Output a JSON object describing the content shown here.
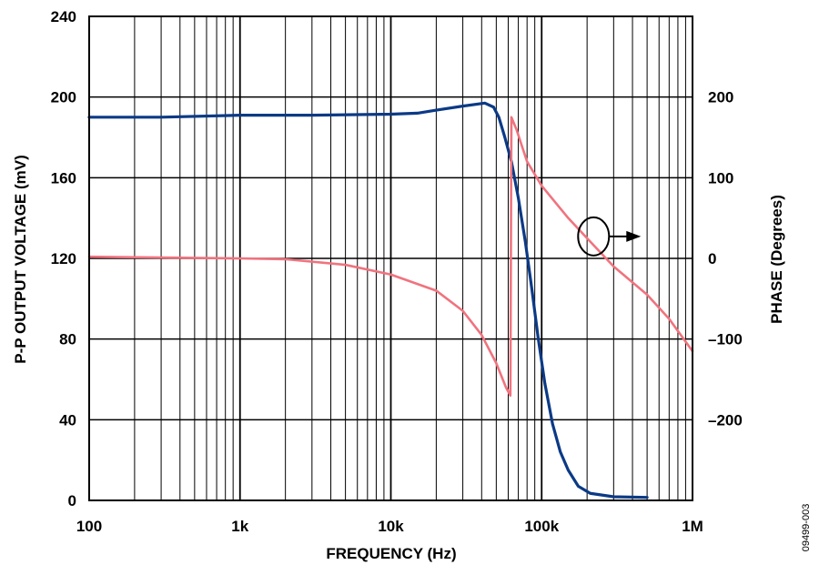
{
  "chart_data": {
    "type": "line",
    "xlabel": "FREQUENCY (Hz)",
    "ylabel": "P-P OUTPUT VOLTAGE (mV)",
    "y2label": "PHASE (Degrees)",
    "x_scale": "log",
    "xlim": [
      100,
      1000000
    ],
    "ylim": [
      0,
      240
    ],
    "y2lim": [
      -300,
      300
    ],
    "grid": true,
    "x_ticks": [
      {
        "value": 100,
        "label": "100"
      },
      {
        "value": 1000,
        "label": "1k"
      },
      {
        "value": 10000,
        "label": "10k"
      },
      {
        "value": 100000,
        "label": "100k"
      },
      {
        "value": 1000000,
        "label": "1M"
      }
    ],
    "y_ticks": [
      {
        "value": 0,
        "label": "0"
      },
      {
        "value": 40,
        "label": "40"
      },
      {
        "value": 80,
        "label": "80"
      },
      {
        "value": 120,
        "label": "120"
      },
      {
        "value": 160,
        "label": "160"
      },
      {
        "value": 200,
        "label": "200"
      },
      {
        "value": 240,
        "label": "240"
      }
    ],
    "y2_ticks": [
      {
        "value": 200,
        "label": "200"
      },
      {
        "value": 100,
        "label": "100"
      },
      {
        "value": 0,
        "label": "0"
      },
      {
        "value": -100,
        "label": "–100"
      },
      {
        "value": -200,
        "label": "–200"
      }
    ],
    "series": [
      {
        "axis": "left",
        "color": "#0b3a86",
        "points": [
          [
            100,
            190
          ],
          [
            300,
            190
          ],
          [
            1000,
            191
          ],
          [
            3000,
            191
          ],
          [
            10000,
            191.5
          ],
          [
            15000,
            192
          ],
          [
            20000,
            193.5
          ],
          [
            30000,
            195.5
          ],
          [
            42000,
            197
          ],
          [
            48000,
            195
          ],
          [
            52000,
            190
          ],
          [
            57000,
            180
          ],
          [
            63000,
            168
          ],
          [
            70000,
            150
          ],
          [
            78000,
            128
          ],
          [
            86000,
            105
          ],
          [
            95000,
            80
          ],
          [
            105000,
            58
          ],
          [
            118000,
            38
          ],
          [
            133000,
            24
          ],
          [
            150000,
            15
          ],
          [
            175000,
            7
          ],
          [
            210000,
            3.5
          ],
          [
            300000,
            1.8
          ],
          [
            500000,
            1.5
          ]
        ]
      },
      {
        "axis": "right",
        "color": "#f0737e",
        "points": [
          [
            100,
            2
          ],
          [
            300,
            1
          ],
          [
            1000,
            0
          ],
          [
            2000,
            -1
          ],
          [
            5000,
            -8
          ],
          [
            10000,
            -20
          ],
          [
            20000,
            -40
          ],
          [
            30000,
            -65
          ],
          [
            40000,
            -95
          ],
          [
            50000,
            -130
          ],
          [
            58000,
            -160
          ],
          [
            62000,
            -170
          ],
          [
            63000,
            175
          ],
          [
            68000,
            160
          ],
          [
            80000,
            120
          ],
          [
            100000,
            90
          ],
          [
            150000,
            50
          ],
          [
            200000,
            25
          ],
          [
            300000,
            -10
          ],
          [
            500000,
            -45
          ],
          [
            700000,
            -75
          ],
          [
            1000000,
            -115
          ]
        ]
      }
    ],
    "annotations": [
      {
        "type": "axis-indicator",
        "target_series": 1,
        "direction": "right",
        "x": 240000,
        "y2": 25
      }
    ],
    "figure_code": "09499-003"
  }
}
